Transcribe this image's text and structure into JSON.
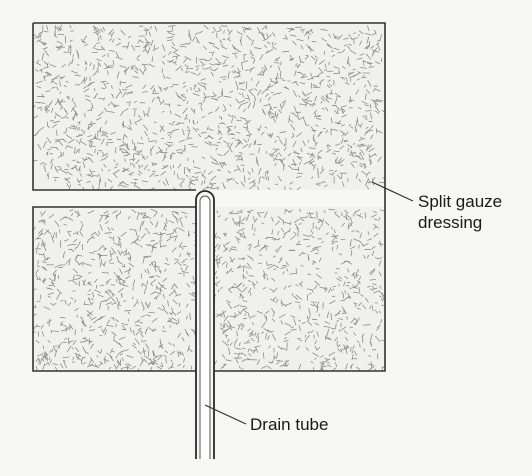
{
  "labels": {
    "dressing_line1": "Split gauze",
    "dressing_line2": "dressing",
    "drain": "Drain tube"
  },
  "colors": {
    "background": "#f7f7f5",
    "outline": "#333333",
    "fill": "#f0f0ee",
    "texture": "#8c8c8c"
  }
}
